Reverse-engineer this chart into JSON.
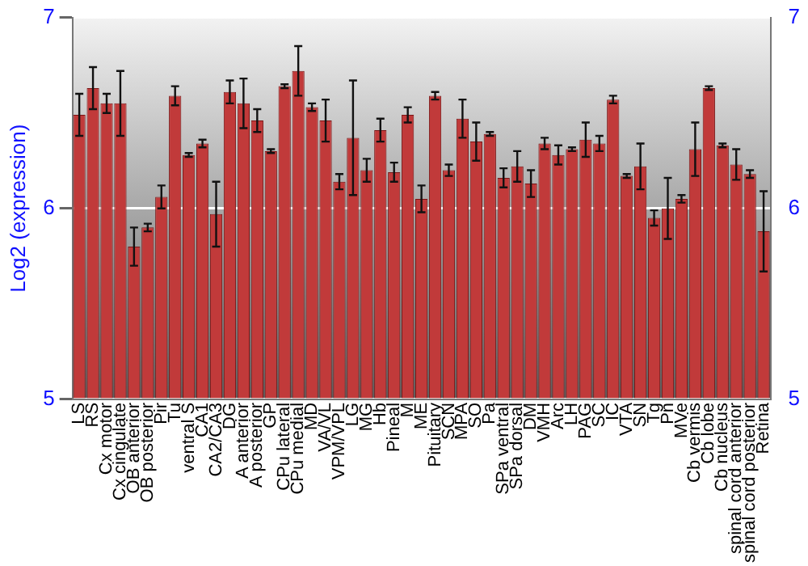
{
  "chart_data": {
    "type": "bar",
    "ylabel": "Log2 (expression)",
    "categories": [
      "LS",
      "RS",
      "Cx motor",
      "Cx cingulate",
      "OB anterior",
      "OB posterior",
      "Pir",
      "Tu",
      "ventral S",
      "CA1",
      "CA2/CA3",
      "DG",
      "A anterior",
      "A posterior",
      "GP",
      "CPu lateral",
      "CPu medial",
      "MD",
      "VA/VL",
      "VPM/VPL",
      "LG",
      "MG",
      "Hb",
      "Pineal",
      "M",
      "ME",
      "Pituitary",
      "SCN",
      "MPA",
      "SO",
      "Pa",
      "SPa ventral",
      "SPa dorsal",
      "DM",
      "VMH",
      "Arc",
      "LH",
      "PAG",
      "SC",
      "IC",
      "VTA",
      "SN",
      "Tg",
      "Pn",
      "MVe",
      "Cb vermis",
      "Cb lobe",
      "Cb nucleus",
      "spinal cord anterior",
      "spinal cord posterior",
      "Retina"
    ],
    "values": [
      6.49,
      6.63,
      6.55,
      6.55,
      5.8,
      5.9,
      6.06,
      6.59,
      6.28,
      6.34,
      5.97,
      6.61,
      6.55,
      6.46,
      6.3,
      6.64,
      6.72,
      6.53,
      6.46,
      6.14,
      6.37,
      6.2,
      6.41,
      6.19,
      6.49,
      6.05,
      6.59,
      6.2,
      6.47,
      6.35,
      6.39,
      6.16,
      6.22,
      6.13,
      6.34,
      6.28,
      6.31,
      6.36,
      6.34,
      6.57,
      6.17,
      6.22,
      5.95,
      6.0,
      6.05,
      6.31,
      6.63,
      6.33,
      6.23,
      6.18,
      5.88
    ],
    "errors": [
      0.11,
      0.11,
      0.05,
      0.17,
      0.1,
      0.02,
      0.06,
      0.05,
      0.01,
      0.02,
      0.17,
      0.06,
      0.13,
      0.06,
      0.01,
      0.01,
      0.13,
      0.02,
      0.11,
      0.04,
      0.3,
      0.06,
      0.06,
      0.05,
      0.04,
      0.07,
      0.02,
      0.03,
      0.1,
      0.1,
      0.01,
      0.05,
      0.08,
      0.07,
      0.03,
      0.05,
      0.01,
      0.09,
      0.04,
      0.02,
      0.01,
      0.12,
      0.04,
      0.16,
      0.02,
      0.14,
      0.01,
      0.01,
      0.08,
      0.02,
      0.21
    ],
    "color": "#c13a3a",
    "ylim": [
      5,
      7
    ],
    "yticks": [
      5,
      6,
      7
    ],
    "y2lim": [
      5,
      7
    ],
    "y2ticks": [
      5,
      6,
      7
    ],
    "grid": "y",
    "legend": false
  }
}
